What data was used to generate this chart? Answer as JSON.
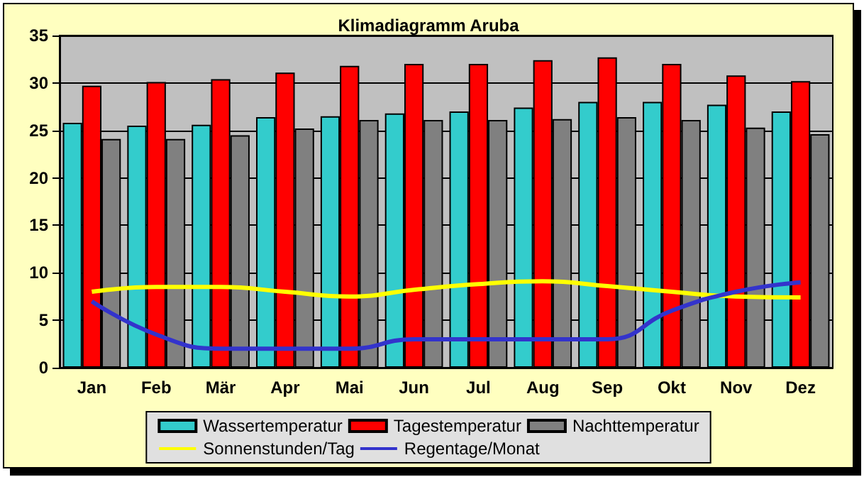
{
  "chart_data": {
    "type": "bar",
    "title": "Klimadiagramm Aruba",
    "categories": [
      "Jan",
      "Feb",
      "Mär",
      "Apr",
      "Mai",
      "Jun",
      "Jul",
      "Aug",
      "Sep",
      "Okt",
      "Nov",
      "Dez"
    ],
    "series": [
      {
        "name": "Wassertemperatur",
        "color": "#33cccc",
        "values": [
          25.8,
          25.5,
          25.6,
          26.4,
          26.5,
          26.8,
          27,
          27.4,
          28,
          28,
          27.7,
          27
        ]
      },
      {
        "name": "Tagestemperatur",
        "color": "#ff0000",
        "values": [
          29.7,
          30.1,
          30.4,
          31.1,
          31.8,
          32,
          32,
          32.4,
          32.7,
          32,
          30.8,
          30.2
        ]
      },
      {
        "name": "Nachttemperatur",
        "color": "#808080",
        "values": [
          24.1,
          24.1,
          24.5,
          25.2,
          26.1,
          26.1,
          26.1,
          26.2,
          26.4,
          26.1,
          25.3,
          24.6
        ]
      },
      {
        "name": "Sonnenstunden/Tag",
        "type": "line",
        "color": "#ffff00",
        "values": [
          8,
          8.5,
          8.5,
          8,
          7.5,
          8.2,
          8.8,
          9.1,
          8.6,
          8,
          7.5,
          7.4
        ]
      },
      {
        "name": "Regentage/Monat",
        "type": "line",
        "color": "#3333cc",
        "values": [
          7,
          3.5,
          2,
          2,
          2,
          3,
          3,
          3,
          3,
          6,
          8,
          9
        ]
      }
    ],
    "ylim": [
      0,
      35
    ],
    "yticks": [
      0,
      5,
      10,
      15,
      20,
      25,
      30,
      35
    ],
    "grid": "y",
    "legend": "bottom",
    "marker": "none"
  }
}
